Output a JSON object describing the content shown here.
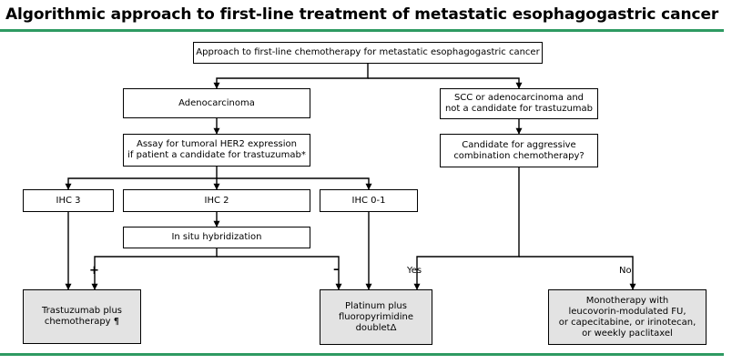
{
  "title": "Algorithmic approach to first-line treatment of metastatic esophagogastric cancer",
  "colors": {
    "rule": "#2e9a62",
    "terminal_fill": "#e3e3e3"
  },
  "nodes": {
    "approach": "Approach to first-line chemotherapy for metastatic esophagogastric cancer",
    "adeno": "Adenocarcinoma",
    "scc": "SCC or adenocarcinoma and\nnot a candidate for trastuzumab",
    "her2": "Assay for tumoral HER2 expression\nif patient a candidate for trastuzumab*",
    "aggressive": "Candidate for aggressive\ncombination chemotherapy?",
    "ihc3": "IHC 3",
    "ihc2": "IHC 2",
    "ihc01": "IHC 0-1",
    "ish": "In situ hybridization",
    "trastuzumab": "Trastuzumab plus\nchemotherapy ¶",
    "platinum": "Platinum plus\nfluoropyrimidine\ndoubletΔ",
    "mono": "Monotherapy with\nleucovorin-modulated FU,\nor capecitabine, or irinotecan,\nor weekly paclitaxel"
  },
  "labels": {
    "plus": "+",
    "minus": "–",
    "yes": "Yes",
    "no": "No"
  }
}
